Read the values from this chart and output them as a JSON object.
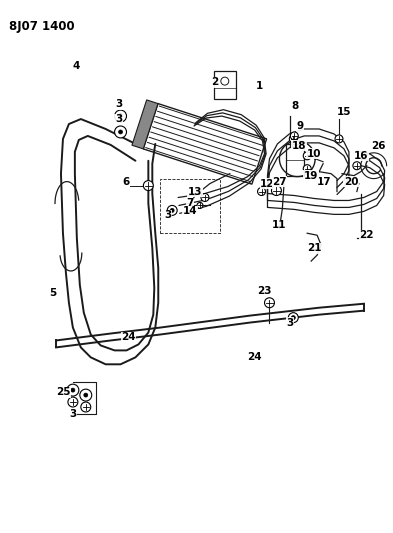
{
  "title": "8J07 1400",
  "bg_color": "#ffffff",
  "line_color": "#1a1a1a",
  "fig_width": 3.93,
  "fig_height": 5.33,
  "dpi": 100
}
